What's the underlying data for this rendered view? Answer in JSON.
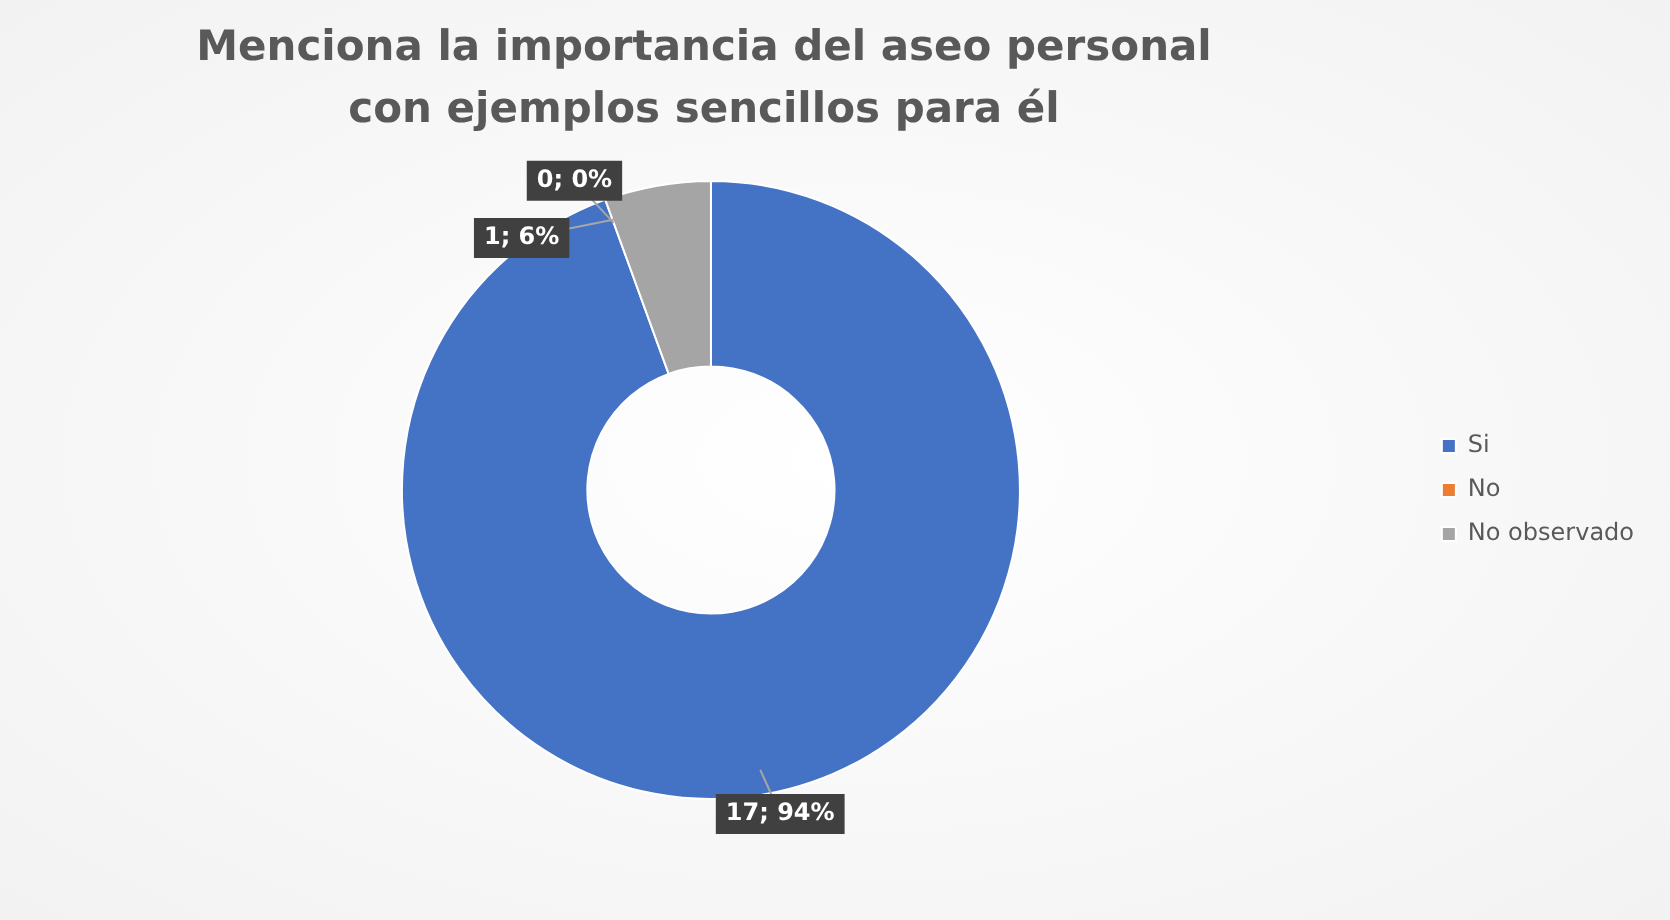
{
  "chart_data": {
    "type": "donut",
    "title": "Menciona la importancia del aseo personal con ejemplos sencillos para él",
    "categories": [
      "Si",
      "No",
      "No observado"
    ],
    "values": [
      17,
      0,
      1
    ],
    "colors": [
      "#4472c4",
      "#ed7d31",
      "#a5a5a5"
    ],
    "value_labels": [
      "17; 94%",
      "0; 0%",
      "1; 6%"
    ],
    "legend": "right"
  }
}
